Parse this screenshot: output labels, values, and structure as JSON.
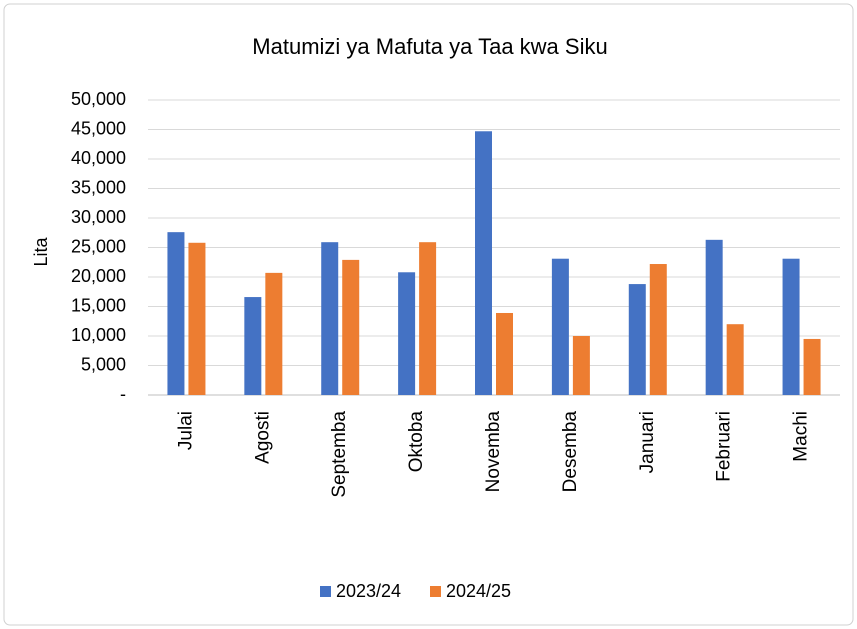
{
  "chart_data": {
    "type": "bar",
    "title": "Matumizi ya Mafuta ya Taa kwa Siku",
    "y_label": "Lita",
    "categories": [
      "Julai",
      "Agosti",
      "Septemba",
      "Oktoba",
      "Novemba",
      "Desemba",
      "Januari",
      "Februari",
      "Machi"
    ],
    "series": [
      {
        "name": "2023/24",
        "color": "#4472c4",
        "values": [
          27600,
          16600,
          25900,
          20800,
          44700,
          23100,
          18800,
          26300,
          23100
        ]
      },
      {
        "name": "2024/25",
        "color": "#ed7d31",
        "values": [
          25800,
          20700,
          22900,
          25900,
          13900,
          10000,
          22200,
          12000,
          9500
        ]
      }
    ],
    "ylim": [
      0,
      50000
    ],
    "yticks": [
      {
        "value": 0,
        "label": "-"
      },
      {
        "value": 5000,
        "label": "5,000"
      },
      {
        "value": 10000,
        "label": "10,000"
      },
      {
        "value": 15000,
        "label": "15,000"
      },
      {
        "value": 20000,
        "label": "20,000"
      },
      {
        "value": 25000,
        "label": "25,000"
      },
      {
        "value": 30000,
        "label": "30,000"
      },
      {
        "value": 35000,
        "label": "35,000"
      },
      {
        "value": 40000,
        "label": "40,000"
      },
      {
        "value": 45000,
        "label": "45,000"
      },
      {
        "value": 50000,
        "label": "50,000"
      }
    ],
    "grid": true,
    "legend": "bottom"
  }
}
